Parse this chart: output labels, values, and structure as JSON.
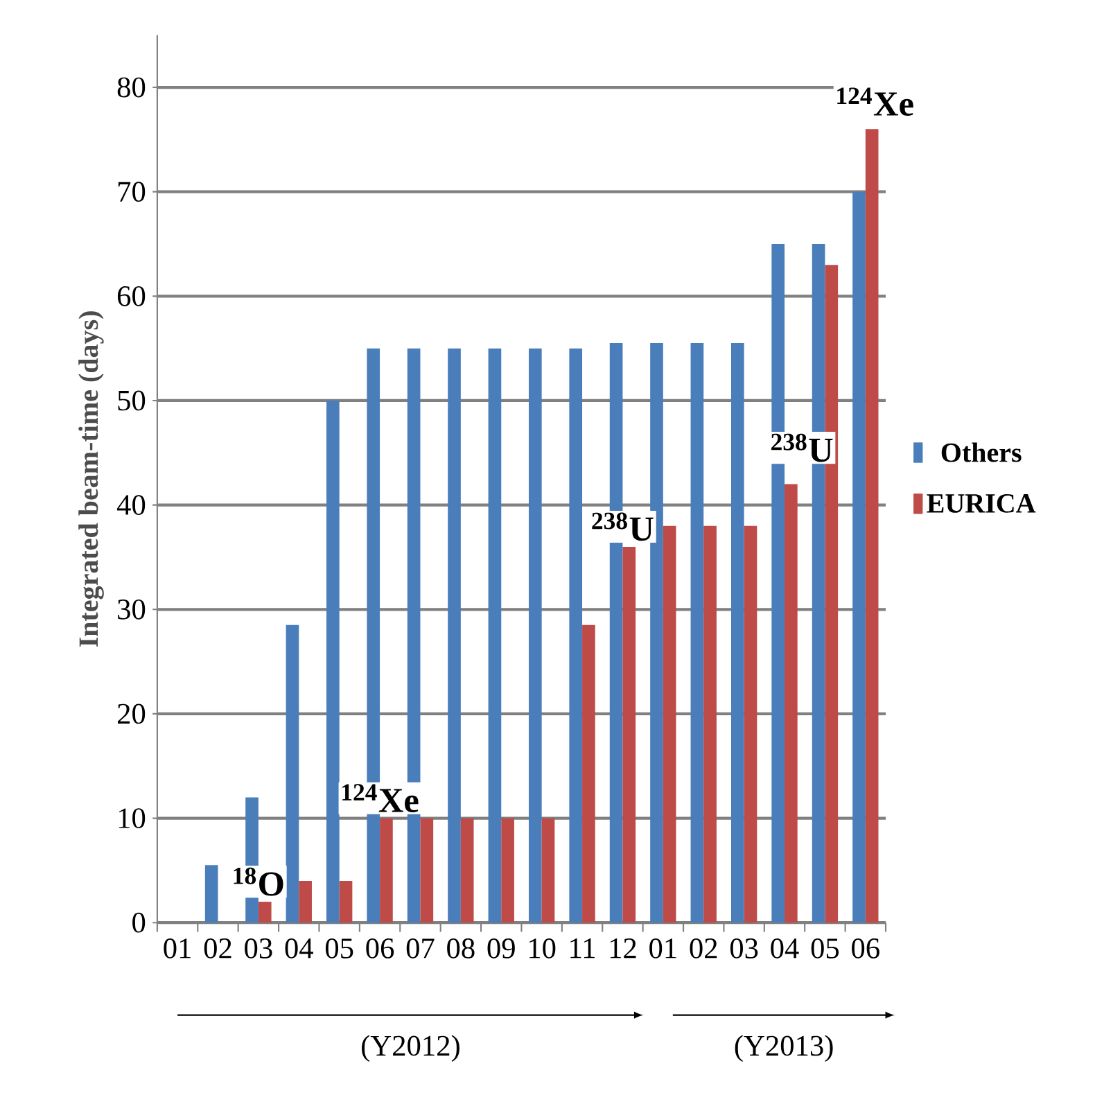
{
  "chart_data": {
    "type": "bar",
    "ylabel": "Integrated beam-time (days)",
    "categories": [
      "01",
      "02",
      "03",
      "04",
      "05",
      "06",
      "07",
      "08",
      "09",
      "10",
      "11",
      "12",
      "01",
      "02",
      "03",
      "04",
      "05",
      "06"
    ],
    "series": [
      {
        "name": "Others",
        "color": "#4a7ebb",
        "values": [
          0,
          5.5,
          12,
          28.5,
          50,
          55,
          55,
          55,
          55,
          55,
          55,
          55.5,
          55.5,
          55.5,
          55.5,
          65,
          65,
          70
        ]
      },
      {
        "name": "EURICA",
        "color": "#be4b48",
        "values": [
          0,
          0,
          2,
          4,
          4,
          10,
          10,
          10,
          10,
          10,
          28.5,
          36,
          38,
          38,
          38,
          42,
          63,
          76
        ]
      }
    ],
    "ylim": [
      0,
      85
    ],
    "yticks": [
      0,
      10,
      20,
      30,
      40,
      50,
      60,
      70,
      80
    ],
    "grid": "y",
    "legend": "right",
    "annotations": [
      {
        "text": "$^{18}$O",
        "x": "03",
        "y": 2
      },
      {
        "text": "$^{124}$Xe",
        "x": "06",
        "y": 10
      },
      {
        "text": "$^{238}$U",
        "x": "12",
        "y": 36
      },
      "$^{238}$U",
      "$^{124}$Xe",
      "(Y2012)",
      "(Y2013)"
    ]
  }
}
